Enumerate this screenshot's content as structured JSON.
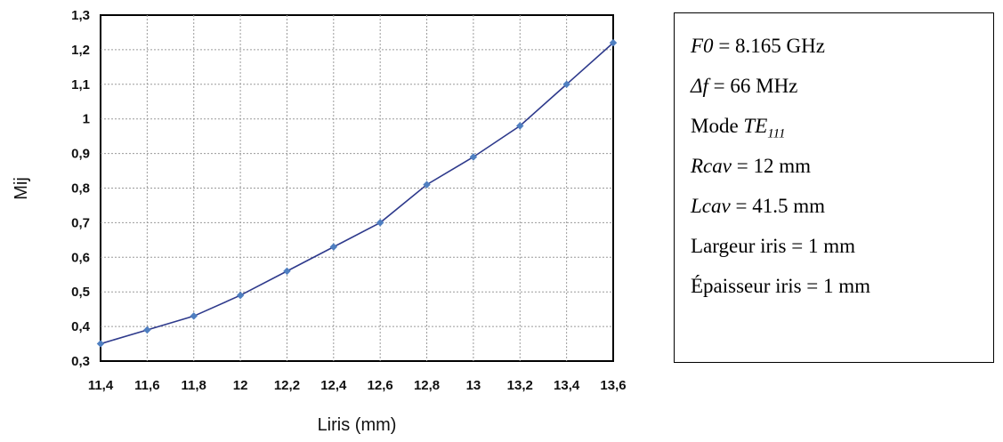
{
  "chart_data": {
    "type": "line",
    "title": "",
    "xlabel": "Liris (mm)",
    "ylabel": "Mij",
    "x": [
      11.4,
      11.6,
      11.8,
      12.0,
      12.2,
      12.4,
      12.6,
      12.8,
      13.0,
      13.2,
      13.4,
      13.6
    ],
    "x_tick_labels": [
      "11,4",
      "11,6",
      "11,8",
      "12",
      "12,2",
      "12,4",
      "12,6",
      "12,8",
      "13",
      "13,2",
      "13,4",
      "13,6"
    ],
    "y_ticks": [
      0.3,
      0.4,
      0.5,
      0.6,
      0.7,
      0.8,
      0.9,
      1.0,
      1.1,
      1.2,
      1.3
    ],
    "y_tick_labels": [
      "0,3",
      "0,4",
      "0,5",
      "0,6",
      "0,7",
      "0,8",
      "0,9",
      "1",
      "1,1",
      "1,2",
      "1,3"
    ],
    "series": [
      {
        "values": [
          0.35,
          0.39,
          0.43,
          0.49,
          0.56,
          0.63,
          0.7,
          0.81,
          0.89,
          0.98,
          1.1,
          1.22
        ]
      }
    ],
    "xlim": [
      11.4,
      13.6
    ],
    "ylim": [
      0.3,
      1.3
    ],
    "grid": true,
    "colors": {
      "line": "#2e3a8c",
      "marker": "#4f7fc1",
      "grid": "#9a9a9a"
    }
  },
  "parameters": {
    "f0": {
      "sym": "F0",
      "rest": " = 8.165 GHz"
    },
    "df": {
      "sym": "Δf",
      "rest": " = 66 MHz"
    },
    "mode": {
      "pre": "Mode ",
      "sym": "TE",
      "sub": "111"
    },
    "rcav": {
      "sym": "Rcav",
      "rest": " = 12 mm"
    },
    "lcav": {
      "sym": "Lcav",
      "rest": " = 41.5 mm"
    },
    "largeur": {
      "text": "Largeur iris = 1 mm"
    },
    "epaisseur": {
      "text": "Épaisseur iris = 1 mm"
    }
  }
}
